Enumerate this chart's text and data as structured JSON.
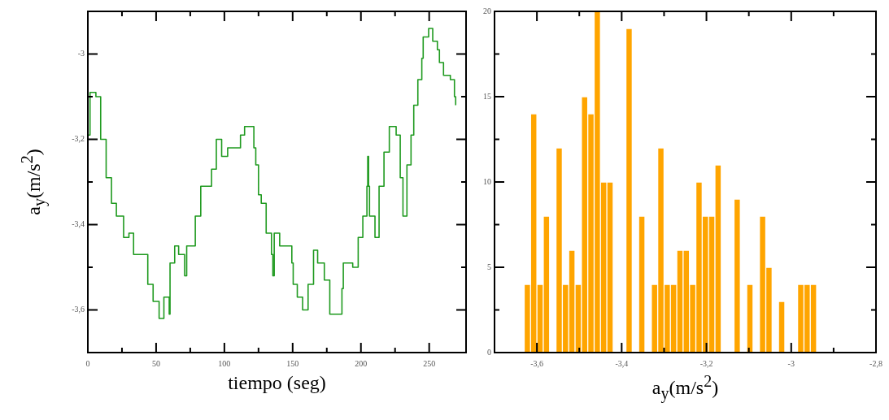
{
  "chart_data": [
    {
      "type": "step",
      "xlabel": "tiempo (seg)",
      "ylabel": "a$_{y}$(m/s$^{2}$)",
      "color": "#1f9a1f",
      "marker": "none",
      "x": [
        0,
        1.6,
        5.9,
        9.4,
        13.4,
        17.3,
        20.9,
        26.2,
        30.1,
        33.5,
        43.9,
        47.8,
        52.2,
        55.7,
        59.6,
        60.2,
        63.6,
        66.5,
        70.9,
        72.4,
        78.7,
        82.7,
        90.6,
        94.1,
        98,
        102.4,
        111.8,
        114.8,
        121.6,
        123,
        125,
        127,
        130.6,
        134.5,
        135.5,
        136.5,
        140.5,
        149.4,
        150.4,
        153.4,
        157.3,
        161.3,
        165.3,
        168.3,
        173.2,
        177.2,
        186.1,
        187.1,
        194,
        198,
        201.4,
        204.4,
        205,
        205.6,
        206.3,
        210.3,
        213.3,
        216.9,
        220.8,
        225.8,
        228.8,
        230.8,
        233.7,
        236.7,
        238.7,
        241.7,
        244.6,
        245.6,
        249.6,
        252.6,
        256,
        257.5,
        260.5,
        265.5,
        268.5,
        269.4
      ],
      "values": [
        -3.19,
        -3.09,
        -3.1,
        -3.2,
        -3.29,
        -3.35,
        -3.38,
        -3.43,
        -3.42,
        -3.47,
        -3.54,
        -3.58,
        -3.62,
        -3.57,
        -3.61,
        -3.49,
        -3.45,
        -3.47,
        -3.52,
        -3.45,
        -3.38,
        -3.31,
        -3.27,
        -3.2,
        -3.24,
        -3.22,
        -3.19,
        -3.17,
        -3.22,
        -3.26,
        -3.33,
        -3.35,
        -3.42,
        -3.47,
        -3.52,
        -3.42,
        -3.45,
        -3.49,
        -3.54,
        -3.57,
        -3.6,
        -3.54,
        -3.46,
        -3.49,
        -3.53,
        -3.61,
        -3.55,
        -3.49,
        -3.5,
        -3.43,
        -3.38,
        -3.31,
        -3.24,
        -3.31,
        -3.38,
        -3.43,
        -3.31,
        -3.23,
        -3.17,
        -3.19,
        -3.29,
        -3.38,
        -3.26,
        -3.19,
        -3.12,
        -3.06,
        -3.01,
        -2.96,
        -2.94,
        -2.97,
        -2.99,
        -3.02,
        -3.05,
        -3.06,
        -3.1,
        -3.12
      ],
      "xlim": [
        0,
        277
      ],
      "ylim": [
        -3.7,
        -2.9
      ],
      "xticks": [
        0,
        {
          "value": 25,
          "label": null
        },
        50,
        {
          "value": 75,
          "label": null
        },
        100,
        {
          "value": 125,
          "label": null
        },
        150,
        {
          "value": 175,
          "label": null
        },
        200,
        {
          "value": 225,
          "label": null
        },
        250
      ],
      "yticks": [
        {
          "value": -3.6,
          "label": "-3,6"
        },
        {
          "value": -3.5,
          "label": null
        },
        {
          "value": -3.4,
          "label": "-3,4"
        },
        {
          "value": -3.3,
          "label": null
        },
        {
          "value": -3.2,
          "label": "-3,2"
        },
        {
          "value": -3.1,
          "label": null
        },
        {
          "value": -3,
          "label": "-3"
        }
      ]
    },
    {
      "type": "histogram",
      "xlabel": "a$_{y}$(m/s$^{2}$)",
      "color": "#ffa500",
      "bins": [
        -3.63,
        -3.615,
        -3.6,
        -3.585,
        -3.57,
        -3.555,
        -3.54,
        -3.525,
        -3.51,
        -3.495,
        -3.48,
        -3.465,
        -3.45,
        -3.435,
        -3.42,
        -3.405,
        -3.39,
        -3.375,
        -3.36,
        -3.345,
        -3.33,
        -3.315,
        -3.3,
        -3.285,
        -3.27,
        -3.255,
        -3.24,
        -3.225,
        -3.21,
        -3.195,
        -3.18,
        -3.165,
        -3.15,
        -3.135,
        -3.12,
        -3.105,
        -3.09,
        -3.075,
        -3.06,
        -3.045,
        -3.03,
        -3.015,
        -3,
        -2.985,
        -2.97,
        -2.955,
        -2.94
      ],
      "values": [
        4,
        14,
        4,
        8,
        0,
        12,
        4,
        6,
        4,
        15,
        14,
        20,
        10,
        10,
        0,
        0,
        19,
        0,
        8,
        0,
        4,
        12,
        4,
        4,
        6,
        6,
        4,
        10,
        8,
        8,
        11,
        0,
        0,
        9,
        0,
        4,
        0,
        8,
        5,
        0,
        3,
        0,
        0,
        4,
        4,
        4
      ],
      "xlim": [
        -3.7,
        -2.8
      ],
      "ylim": [
        0,
        20
      ],
      "xticks": [
        {
          "value": -3.6,
          "label": "-3,6"
        },
        {
          "value": -3.5,
          "label": null
        },
        {
          "value": -3.4,
          "label": "-3,4"
        },
        {
          "value": -3.3,
          "label": null
        },
        {
          "value": -3.2,
          "label": "-3,2"
        },
        {
          "value": -3.1,
          "label": null
        },
        {
          "value": -3,
          "label": "-3"
        },
        {
          "value": -2.9,
          "label": null
        },
        {
          "value": -2.8,
          "label": "-2,8"
        }
      ],
      "yticks": [
        0,
        {
          "value": 2.5,
          "label": null
        },
        5,
        {
          "value": 7.5,
          "label": null
        },
        10,
        {
          "value": 12.5,
          "label": null
        },
        15,
        {
          "value": 17.5,
          "label": null
        },
        20
      ]
    }
  ]
}
